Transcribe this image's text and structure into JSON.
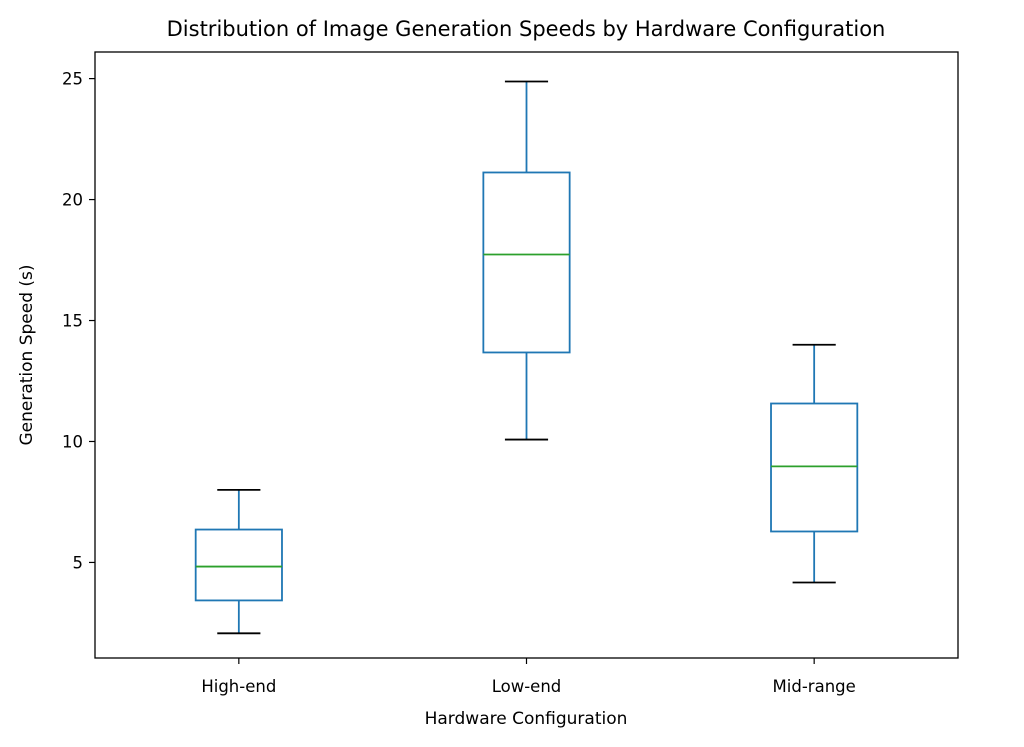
{
  "chart_data": {
    "type": "box",
    "title": "Distribution of Image Generation Speeds by Hardware Configuration",
    "xlabel": "Hardware Configuration",
    "ylabel": "Generation Speed (s)",
    "categories": [
      "High-end",
      "Low-end",
      "Mid-range"
    ],
    "ylim": [
      1.05,
      26.1
    ],
    "yticks": [
      5,
      10,
      15,
      20,
      25
    ],
    "grid": false,
    "legend": null,
    "series": [
      {
        "name": "High-end",
        "whisker_low": 2.07,
        "q1": 3.43,
        "median": 4.83,
        "q3": 6.36,
        "whisker_high": 8.0
      },
      {
        "name": "Low-end",
        "whisker_low": 10.08,
        "q1": 13.68,
        "median": 17.73,
        "q3": 21.12,
        "whisker_high": 24.88
      },
      {
        "name": "Mid-range",
        "whisker_low": 4.17,
        "q1": 6.28,
        "median": 8.97,
        "q3": 11.57,
        "whisker_high": 14.0
      }
    ],
    "colors": {
      "box": "#1f77b4",
      "whisker": "#1f77b4",
      "median": "#2ca02c",
      "cap": "#000000",
      "axes": "#000000"
    }
  }
}
